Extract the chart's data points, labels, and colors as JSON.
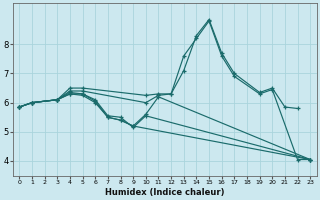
{
  "xlabel": "Humidex (Indice chaleur)",
  "bg_color": "#cce8ef",
  "grid_color": "#aad4dc",
  "line_color": "#1a6b6b",
  "xlim": [
    -0.5,
    23.5
  ],
  "ylim": [
    3.5,
    9.4
  ],
  "yticks": [
    4,
    5,
    6,
    7,
    8
  ],
  "xticks": [
    0,
    1,
    2,
    3,
    4,
    5,
    6,
    7,
    8,
    9,
    10,
    11,
    12,
    13,
    14,
    15,
    16,
    17,
    18,
    19,
    20,
    21,
    22,
    23
  ],
  "series": [
    {
      "x": [
        0,
        1,
        3,
        4,
        5,
        10,
        11,
        12,
        13,
        14,
        15,
        16,
        17,
        19,
        20,
        21,
        22
      ],
      "y": [
        5.85,
        6.0,
        6.1,
        6.5,
        6.5,
        6.25,
        6.3,
        6.3,
        7.1,
        8.3,
        8.85,
        7.7,
        7.0,
        6.35,
        6.5,
        5.85,
        5.8
      ]
    },
    {
      "x": [
        0,
        1,
        3,
        4,
        5,
        10,
        11,
        12,
        13,
        14,
        15,
        16,
        17,
        19,
        20,
        22,
        23
      ],
      "y": [
        5.85,
        6.0,
        6.1,
        6.4,
        6.4,
        6.0,
        6.25,
        6.3,
        7.6,
        8.2,
        8.8,
        7.6,
        6.9,
        6.3,
        6.45,
        4.05,
        4.05
      ]
    },
    {
      "x": [
        0,
        1,
        3,
        4,
        5,
        6,
        7,
        8,
        9,
        23
      ],
      "y": [
        5.85,
        6.0,
        6.1,
        6.3,
        6.25,
        6.0,
        5.5,
        5.4,
        5.2,
        4.05
      ]
    },
    {
      "x": [
        0,
        1,
        3,
        4,
        5,
        6,
        7,
        8,
        9,
        10,
        23
      ],
      "y": [
        5.85,
        6.0,
        6.1,
        6.3,
        6.3,
        6.1,
        5.55,
        5.5,
        5.15,
        5.55,
        4.05
      ]
    },
    {
      "x": [
        0,
        1,
        3,
        4,
        5,
        6,
        7,
        8,
        9,
        10,
        11,
        23
      ],
      "y": [
        5.85,
        6.0,
        6.1,
        6.35,
        6.3,
        6.05,
        5.5,
        5.4,
        5.2,
        5.6,
        6.2,
        4.05
      ]
    }
  ]
}
